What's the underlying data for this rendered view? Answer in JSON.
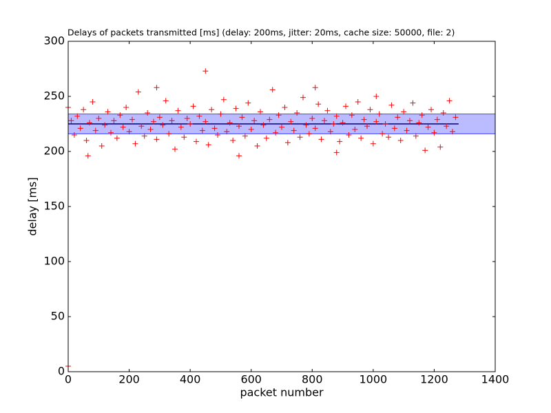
{
  "chart_data": {
    "type": "scatter",
    "title": "Delays of packets transmitted [ms] (delay: 200ms, jitter: 20ms, cache size: 50000, file: 2)",
    "x_label": "packet number",
    "y_label": "delay [ms]",
    "xlim": [
      0,
      1400
    ],
    "ylim": [
      0,
      300
    ],
    "xticks": [
      0,
      200,
      400,
      600,
      800,
      1000,
      1200,
      1400
    ],
    "yticks": [
      0,
      50,
      100,
      150,
      200,
      250,
      300
    ],
    "band": {
      "ymin": 216,
      "ymax": 234,
      "color": "#bbbbff",
      "edge": "#4444ff"
    },
    "mean_line": {
      "x": [
        0,
        1280
      ],
      "values": [
        225,
        225
      ],
      "color": "#000080"
    },
    "series": [
      {
        "color": "#ff0000",
        "x": [
          0,
          10,
          20,
          30,
          40,
          50,
          60,
          70,
          80,
          90,
          100,
          110,
          120,
          130,
          140,
          150,
          160,
          170,
          180,
          190,
          200,
          210,
          220,
          230,
          240,
          250,
          260,
          270,
          280,
          290,
          300,
          310,
          320,
          330,
          340,
          350,
          360,
          370,
          380,
          390,
          400,
          410,
          420,
          430,
          440,
          450,
          460,
          470,
          480,
          490,
          500,
          510,
          520,
          530,
          540,
          550,
          560,
          570,
          580,
          590,
          600,
          610,
          620,
          630,
          640,
          650,
          660,
          670,
          680,
          690,
          700,
          710,
          720,
          730,
          740,
          750,
          760,
          770,
          780,
          790,
          800,
          810,
          820,
          830,
          840,
          850,
          860,
          870,
          880,
          890,
          900,
          910,
          920,
          930,
          940,
          950,
          960,
          970,
          980,
          990,
          1000,
          1010,
          1020,
          1030,
          1040,
          1050,
          1060,
          1070,
          1080,
          1090,
          1100,
          1110,
          1120,
          1130,
          1140,
          1150,
          1160,
          1170,
          1180,
          1190,
          1200,
          1210,
          1220,
          1230,
          1240,
          1250,
          1260,
          1270,
          0,
          65,
          290,
          450,
          560,
          810,
          1010,
          880
        ],
        "values": [
          240,
          228,
          215,
          232,
          221,
          238,
          210,
          226,
          245,
          219,
          230,
          205,
          224,
          236,
          217,
          228,
          212,
          233,
          222,
          240,
          218,
          229,
          207,
          254,
          223,
          214,
          235,
          220,
          227,
          211,
          231,
          224,
          246,
          216,
          228,
          202,
          237,
          222,
          213,
          230,
          225,
          241,
          209,
          232,
          219,
          227,
          206,
          238,
          221,
          215,
          234,
          247,
          218,
          226,
          210,
          239,
          223,
          231,
          214,
          244,
          220,
          228,
          205,
          236,
          224,
          212,
          229,
          256,
          217,
          233,
          222,
          240,
          208,
          227,
          219,
          235,
          213,
          249,
          224,
          216,
          230,
          221,
          243,
          211,
          228,
          237,
          218,
          225,
          232,
          209,
          226,
          241,
          215,
          233,
          220,
          245,
          212,
          229,
          223,
          238,
          207,
          227,
          234,
          216,
          225,
          213,
          242,
          221,
          231,
          210,
          236,
          219,
          228,
          244,
          214,
          226,
          233,
          201,
          222,
          238,
          217,
          229,
          204,
          235,
          223,
          246,
          218,
          231,
          5,
          196,
          258,
          273,
          196,
          258,
          250,
          199
        ]
      }
    ]
  }
}
